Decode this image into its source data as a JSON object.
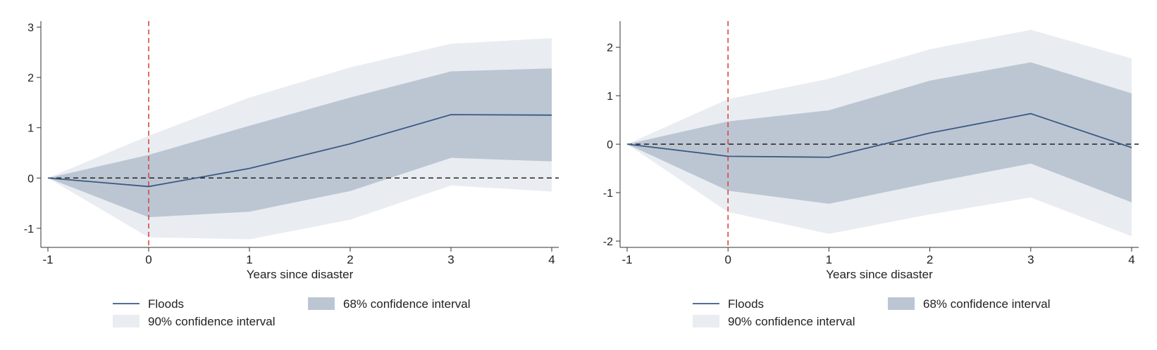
{
  "chart_data": [
    {
      "type": "line",
      "title": "",
      "xlabel": "Years since disaster",
      "ylabel": "",
      "x": [
        -1,
        0,
        1,
        2,
        3,
        4
      ],
      "xlim": [
        -1,
        4
      ],
      "ylim": [
        -1.38,
        3.12
      ],
      "xticks": [
        -1,
        0,
        1,
        2,
        3,
        4
      ],
      "yticks": [
        -1,
        0,
        1,
        2,
        3
      ],
      "grid": false,
      "legend_position": "bottom",
      "event_line_x": 0,
      "reference_line_y": 0,
      "series": [
        {
          "name": "Floods",
          "type": "line",
          "color": "#3a5a82",
          "values": [
            0,
            -0.17,
            0.19,
            0.68,
            1.26,
            1.25
          ]
        },
        {
          "name": "68% confidence interval",
          "type": "band",
          "color": "#bcc6d3",
          "lower": [
            0,
            -0.78,
            -0.67,
            -0.26,
            0.4,
            0.33
          ],
          "upper": [
            0,
            0.46,
            1.04,
            1.6,
            2.12,
            2.18
          ]
        },
        {
          "name": "90% confidence interval",
          "type": "band",
          "color": "#e9edf2",
          "lower": [
            0,
            -1.18,
            -1.22,
            -0.83,
            -0.15,
            -0.27
          ],
          "upper": [
            0,
            0.84,
            1.6,
            2.2,
            2.67,
            2.78
          ]
        }
      ]
    },
    {
      "type": "line",
      "title": "",
      "xlabel": "Years since disaster",
      "ylabel": "",
      "x": [
        -1,
        0,
        1,
        2,
        3,
        4
      ],
      "xlim": [
        -1,
        4
      ],
      "ylim": [
        -2.13,
        2.54
      ],
      "xticks": [
        -1,
        0,
        1,
        2,
        3,
        4
      ],
      "yticks": [
        -2,
        -1,
        0,
        1,
        2
      ],
      "grid": false,
      "legend_position": "bottom",
      "event_line_x": 0,
      "reference_line_y": 0,
      "series": [
        {
          "name": "Floods",
          "type": "line",
          "color": "#3a5a82",
          "values": [
            0,
            -0.25,
            -0.27,
            0.23,
            0.63,
            -0.07
          ]
        },
        {
          "name": "68% confidence interval",
          "type": "band",
          "color": "#bcc6d3",
          "lower": [
            0,
            -0.96,
            -1.23,
            -0.8,
            -0.4,
            -1.2
          ],
          "upper": [
            0,
            0.47,
            0.7,
            1.31,
            1.69,
            1.05
          ]
        },
        {
          "name": "90% confidence interval",
          "type": "band",
          "color": "#e9edf2",
          "lower": [
            0,
            -1.4,
            -1.85,
            -1.45,
            -1.1,
            -1.9
          ],
          "upper": [
            0,
            0.93,
            1.35,
            1.96,
            2.36,
            1.77
          ]
        }
      ]
    }
  ],
  "colors": {
    "event_line": "#d9473f",
    "reference_line": "#222222",
    "axis": "#333333"
  }
}
